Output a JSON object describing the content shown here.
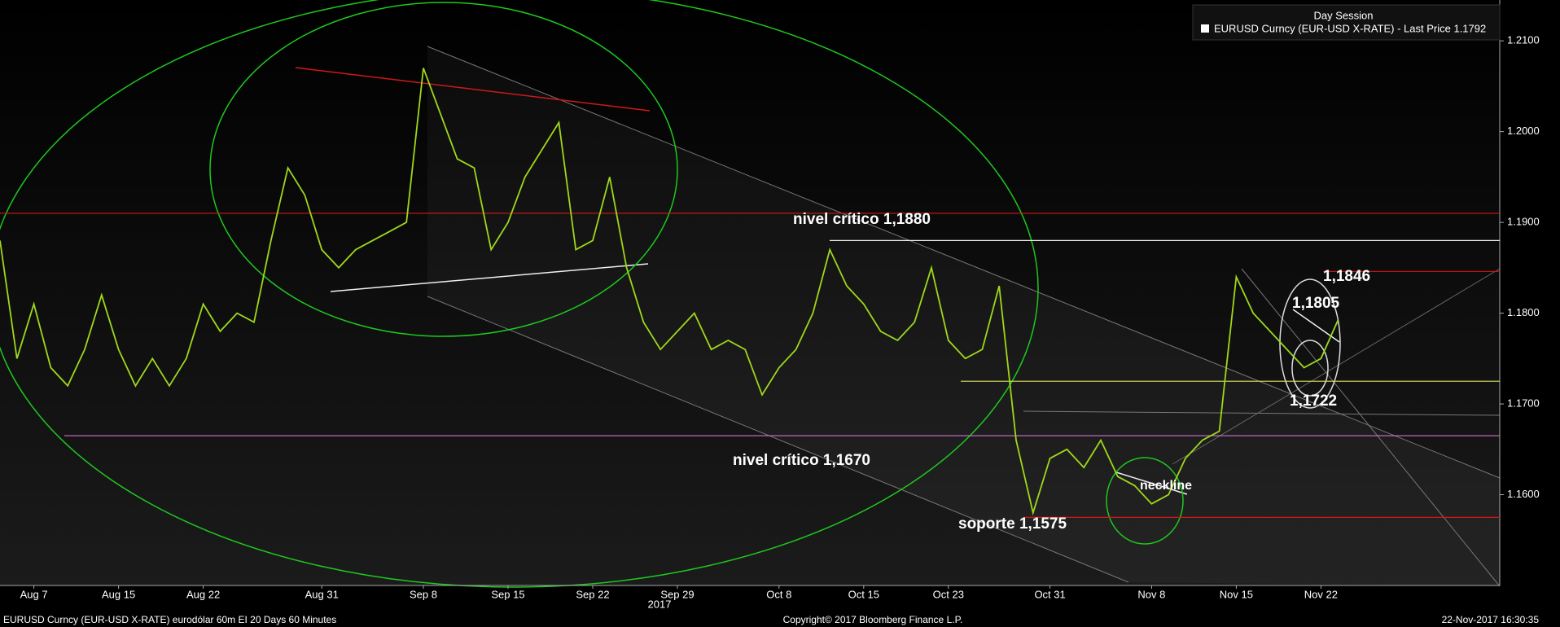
{
  "chart_data": {
    "type": "line",
    "legend_title": "Day Session",
    "series": [
      {
        "name": "EURUSD Curncy (EUR-USD X-RATE) - Last Price 1.1792",
        "color": "#9fd81a",
        "values": [
          1.188,
          1.175,
          1.181,
          1.174,
          1.172,
          1.176,
          1.182,
          1.176,
          1.172,
          1.175,
          1.172,
          1.175,
          1.181,
          1.178,
          1.18,
          1.179,
          1.188,
          1.196,
          1.193,
          1.187,
          1.185,
          1.187,
          1.188,
          1.189,
          1.19,
          1.207,
          1.202,
          1.197,
          1.196,
          1.187,
          1.19,
          1.195,
          1.198,
          1.201,
          1.187,
          1.188,
          1.195,
          1.185,
          1.179,
          1.176,
          1.178,
          1.18,
          1.176,
          1.177,
          1.176,
          1.171,
          1.174,
          1.176,
          1.18,
          1.187,
          1.183,
          1.181,
          1.178,
          1.177,
          1.179,
          1.185,
          1.177,
          1.175,
          1.176,
          1.183,
          1.166,
          1.158,
          1.164,
          1.165,
          1.163,
          1.166,
          1.162,
          1.161,
          1.159,
          1.16,
          1.164,
          1.166,
          1.167,
          1.184,
          1.18,
          1.178,
          1.176,
          1.174,
          1.175,
          1.1792,
          null,
          null,
          null,
          null,
          null,
          null,
          null,
          null,
          null
        ]
      }
    ],
    "categories": [
      null,
      null,
      "Aug 7",
      null,
      null,
      null,
      null,
      "Aug 15",
      null,
      null,
      null,
      null,
      "Aug 22",
      null,
      null,
      null,
      null,
      null,
      null,
      "Aug 31",
      null,
      null,
      null,
      null,
      null,
      "Sep 8",
      null,
      null,
      null,
      null,
      "Sep 15",
      null,
      null,
      null,
      null,
      "Sep 22",
      null,
      null,
      null,
      null,
      "Sep 29",
      null,
      null,
      null,
      null,
      null,
      "Oct 8",
      null,
      null,
      null,
      null,
      "Oct 15",
      null,
      null,
      null,
      null,
      "Oct 23",
      null,
      null,
      null,
      null,
      null,
      "Oct 31",
      null,
      null,
      null,
      null,
      null,
      "Nov 8",
      null,
      null,
      null,
      null,
      "Nov 15",
      null,
      null,
      null,
      null,
      "Nov 22",
      null,
      null,
      null,
      null,
      null,
      null,
      null,
      null,
      null,
      null
    ],
    "year_label": "2017",
    "ylim": [
      1.15,
      1.2145
    ],
    "yticks": [
      {
        "value": 1.16,
        "label": "1.1600"
      },
      {
        "value": 1.17,
        "label": "1.1700"
      },
      {
        "value": 1.18,
        "label": "1.1800"
      },
      {
        "value": 1.19,
        "label": "1.1900"
      },
      {
        "value": 1.2,
        "label": "1.2000"
      },
      {
        "value": 1.21,
        "label": "1.2100"
      }
    ],
    "levels": [
      1.191,
      1.188,
      1.1665,
      1.1846,
      1.1725,
      1.1575
    ],
    "annotations": [
      "nivel crítico 1,1880",
      "nivel crítico 1,1670",
      "soporte 1,1575",
      "neckline",
      "1,1846",
      "1,1805",
      "1,1722"
    ],
    "footer_left": "EURUSD Curncy (EUR-USD X-RATE) eurodólar 60m EI 20 Days 60 Minutes",
    "footer_center": "Copyright© 2017 Bloomberg Finance L.P.",
    "footer_right": "22-Nov-2017 16:30:35"
  }
}
